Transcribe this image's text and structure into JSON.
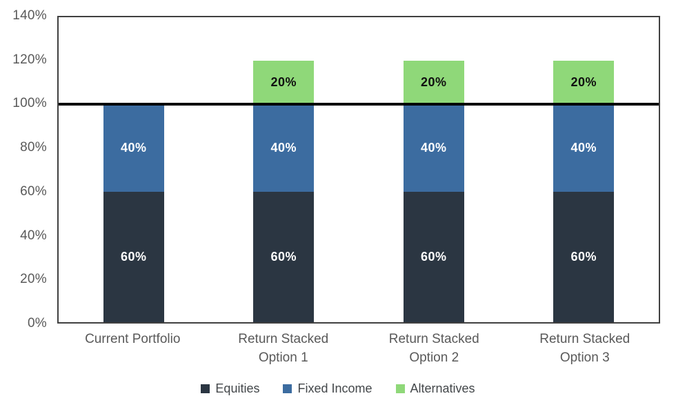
{
  "chart_data": {
    "type": "bar",
    "stacked": true,
    "orientation": "vertical",
    "categories": [
      "Current Portfolio",
      "Return Stacked Option 1",
      "Return Stacked Option 2",
      "Return Stacked Option 3"
    ],
    "series": [
      {
        "name": "Equities",
        "color": "#2b3642",
        "label_color": "#ffffff",
        "values": [
          60,
          60,
          60,
          60
        ]
      },
      {
        "name": "Fixed Income",
        "color": "#3c6ca0",
        "label_color": "#ffffff",
        "values": [
          40,
          40,
          40,
          40
        ]
      },
      {
        "name": "Alternatives",
        "color": "#8fd879",
        "label_color": "#111111",
        "values": [
          0,
          20,
          20,
          20
        ]
      }
    ],
    "value_suffix": "%",
    "ylim": [
      0,
      140
    ],
    "ytick_step": 20,
    "ytick_labels": [
      "0%",
      "20%",
      "40%",
      "60%",
      "80%",
      "100%",
      "120%",
      "140%"
    ],
    "reference_line": {
      "value": 100,
      "color": "#000000"
    },
    "legend_position": "bottom",
    "grid": false,
    "title": "",
    "xlabel": "",
    "ylabel": ""
  },
  "style": {
    "axis_text_color": "#595959",
    "legend_text_color": "#43474a",
    "plot_border_color": "#404040",
    "background": "#ffffff"
  }
}
